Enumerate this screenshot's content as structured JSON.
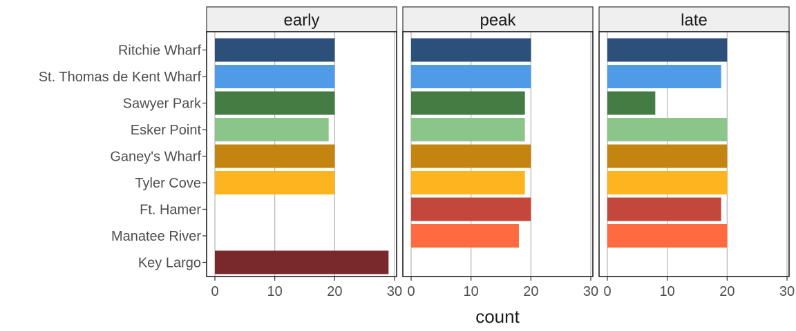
{
  "chart_data": {
    "type": "bar",
    "orientation": "horizontal",
    "facets": [
      "early",
      "peak",
      "late"
    ],
    "categories": [
      "Ritchie Wharf",
      "St. Thomas de Kent Wharf",
      "Sawyer Park",
      "Esker Point",
      "Ganey's Wharf",
      "Tyler Cove",
      "Ft. Hamer",
      "Manatee River",
      "Key Largo"
    ],
    "colors": [
      "#2c5079",
      "#4f9be8",
      "#447c43",
      "#8cc589",
      "#c38410",
      "#fdb41f",
      "#c3473a",
      "#ff6a40",
      "#79282b"
    ],
    "values": {
      "early": [
        20,
        20,
        20,
        19,
        20,
        20,
        0,
        0,
        29
      ],
      "peak": [
        20,
        20,
        19,
        19,
        20,
        19,
        20,
        18,
        0
      ],
      "late": [
        20,
        19,
        8,
        20,
        20,
        20,
        19,
        20,
        0
      ]
    },
    "xlabel": "count",
    "ylabel": "",
    "xlim": [
      0,
      30
    ],
    "xticks": [
      0,
      10,
      20,
      30
    ],
    "grid": "major x only",
    "legend": "none"
  }
}
